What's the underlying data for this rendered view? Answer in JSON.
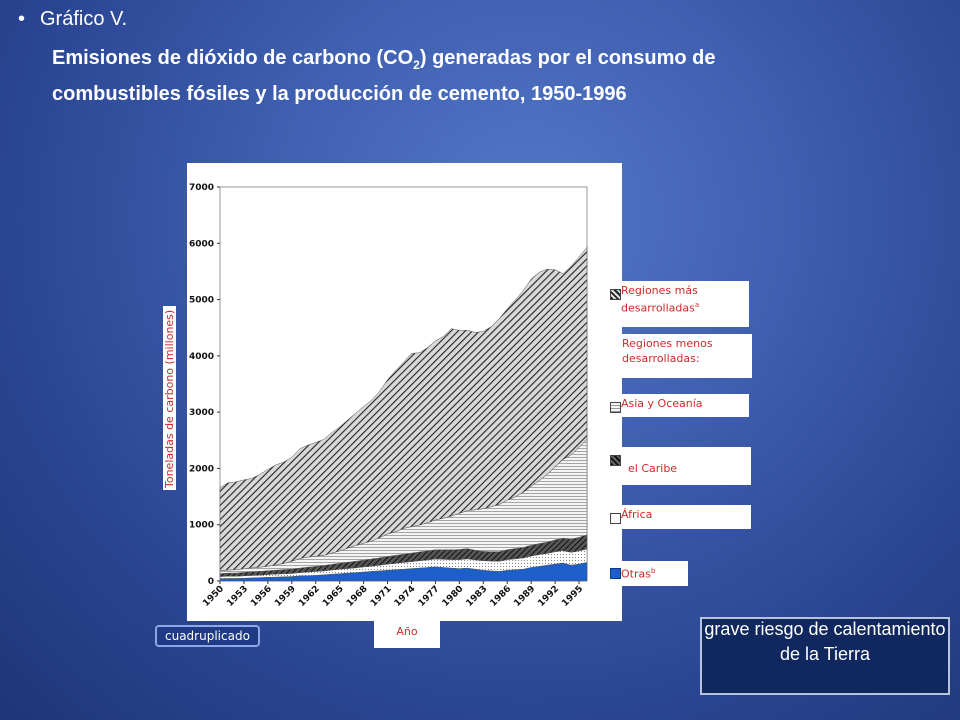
{
  "slide": {
    "bullet": "Gráfico V.",
    "title_part1": "Emisiones de dióxido de carbono (CO",
    "title_sub": "2",
    "title_part2": ") generadas por el consumo de combustibles fósiles y la producción de cemento, 1950-1996",
    "badge": "cuadruplicado",
    "callout": "grave riesgo de calentamiento de la Tierra"
  },
  "chart_data": {
    "type": "area",
    "stacked": true,
    "ylabel": "Toneladas de carbono (millones)",
    "xlabel": "Año",
    "ylim": [
      0,
      7000
    ],
    "yticks": [
      0,
      1000,
      2000,
      3000,
      4000,
      5000,
      6000,
      7000
    ],
    "xticks": [
      "1950",
      "1953",
      "1956",
      "1959",
      "1962",
      "1965",
      "1968",
      "1971",
      "1974",
      "1977",
      "1980",
      "1983",
      "1986",
      "1989",
      "1992",
      "1995"
    ],
    "x": [
      1950,
      1951,
      1952,
      1953,
      1954,
      1955,
      1956,
      1957,
      1958,
      1959,
      1960,
      1961,
      1962,
      1963,
      1964,
      1965,
      1966,
      1967,
      1968,
      1969,
      1970,
      1971,
      1972,
      1973,
      1974,
      1975,
      1976,
      1977,
      1978,
      1979,
      1980,
      1981,
      1982,
      1983,
      1984,
      1985,
      1986,
      1987,
      1988,
      1989,
      1990,
      1991,
      1992,
      1993,
      1994,
      1995,
      1996
    ],
    "series": [
      {
        "name": "Otras b",
        "pattern": "solid-blue",
        "values": [
          40,
          45,
          45,
          50,
          55,
          60,
          65,
          70,
          75,
          80,
          90,
          95,
          100,
          110,
          120,
          130,
          140,
          150,
          160,
          170,
          180,
          190,
          200,
          210,
          220,
          230,
          240,
          250,
          240,
          230,
          220,
          230,
          210,
          190,
          180,
          170,
          190,
          200,
          210,
          240,
          260,
          280,
          300,
          320,
          280,
          300,
          330
        ]
      },
      {
        "name": "África",
        "pattern": "dotted",
        "values": [
          40,
          40,
          40,
          42,
          45,
          45,
          50,
          52,
          55,
          55,
          60,
          65,
          70,
          70,
          75,
          80,
          82,
          85,
          90,
          95,
          100,
          110,
          115,
          120,
          125,
          130,
          135,
          140,
          145,
          150,
          160,
          165,
          165,
          170,
          175,
          180,
          190,
          195,
          200,
          205,
          210,
          210,
          220,
          220,
          230,
          235,
          240
        ]
      },
      {
        "name": "el Caribe",
        "pattern": "diag-dark",
        "values": [
          50,
          55,
          55,
          60,
          62,
          65,
          68,
          70,
          72,
          75,
          80,
          85,
          90,
          95,
          100,
          105,
          110,
          115,
          120,
          125,
          130,
          135,
          140,
          145,
          150,
          155,
          160,
          165,
          170,
          175,
          180,
          180,
          170,
          165,
          165,
          170,
          175,
          180,
          185,
          190,
          195,
          200,
          210,
          220,
          230,
          240,
          250
        ]
      },
      {
        "name": "Asia y Oceanía",
        "pattern": "horiz",
        "values": [
          50,
          55,
          60,
          65,
          70,
          75,
          80,
          90,
          110,
          140,
          170,
          180,
          180,
          180,
          200,
          220,
          250,
          280,
          300,
          320,
          360,
          400,
          420,
          460,
          470,
          480,
          500,
          530,
          560,
          600,
          640,
          680,
          720,
          760,
          800,
          840,
          880,
          920,
          980,
          1050,
          1120,
          1200,
          1300,
          1400,
          1500,
          1600,
          1700
        ]
      },
      {
        "name": "Regiones más desarrolladas a",
        "pattern": "diag-hatch",
        "values": [
          1480,
          1550,
          1560,
          1580,
          1590,
          1650,
          1720,
          1780,
          1800,
          1850,
          1950,
          1990,
          2020,
          2060,
          2140,
          2200,
          2280,
          2350,
          2430,
          2500,
          2600,
          2740,
          2860,
          2950,
          3080,
          3060,
          3110,
          3180,
          3230,
          3330,
          3250,
          3200,
          3150,
          3150,
          3200,
          3300,
          3400,
          3500,
          3580,
          3680,
          3700,
          3650,
          3500,
          3300,
          3350,
          3380,
          3410
        ]
      }
    ],
    "legend": [
      {
        "label": "Regiones más desarrolladas",
        "sup": "a",
        "pattern": "diag-hatch"
      },
      {
        "label": "Regiones menos desarrolladas:",
        "sup": "",
        "pattern": "none"
      },
      {
        "label": "Asia y Oceanía",
        "sup": "",
        "pattern": "horiz"
      },
      {
        "label": "el Caribe",
        "sup": "",
        "pattern": "diag-dark"
      },
      {
        "label": "África",
        "sup": "",
        "pattern": "dotted"
      },
      {
        "label": "Otras",
        "sup": "b",
        "pattern": "solid-blue"
      }
    ]
  }
}
